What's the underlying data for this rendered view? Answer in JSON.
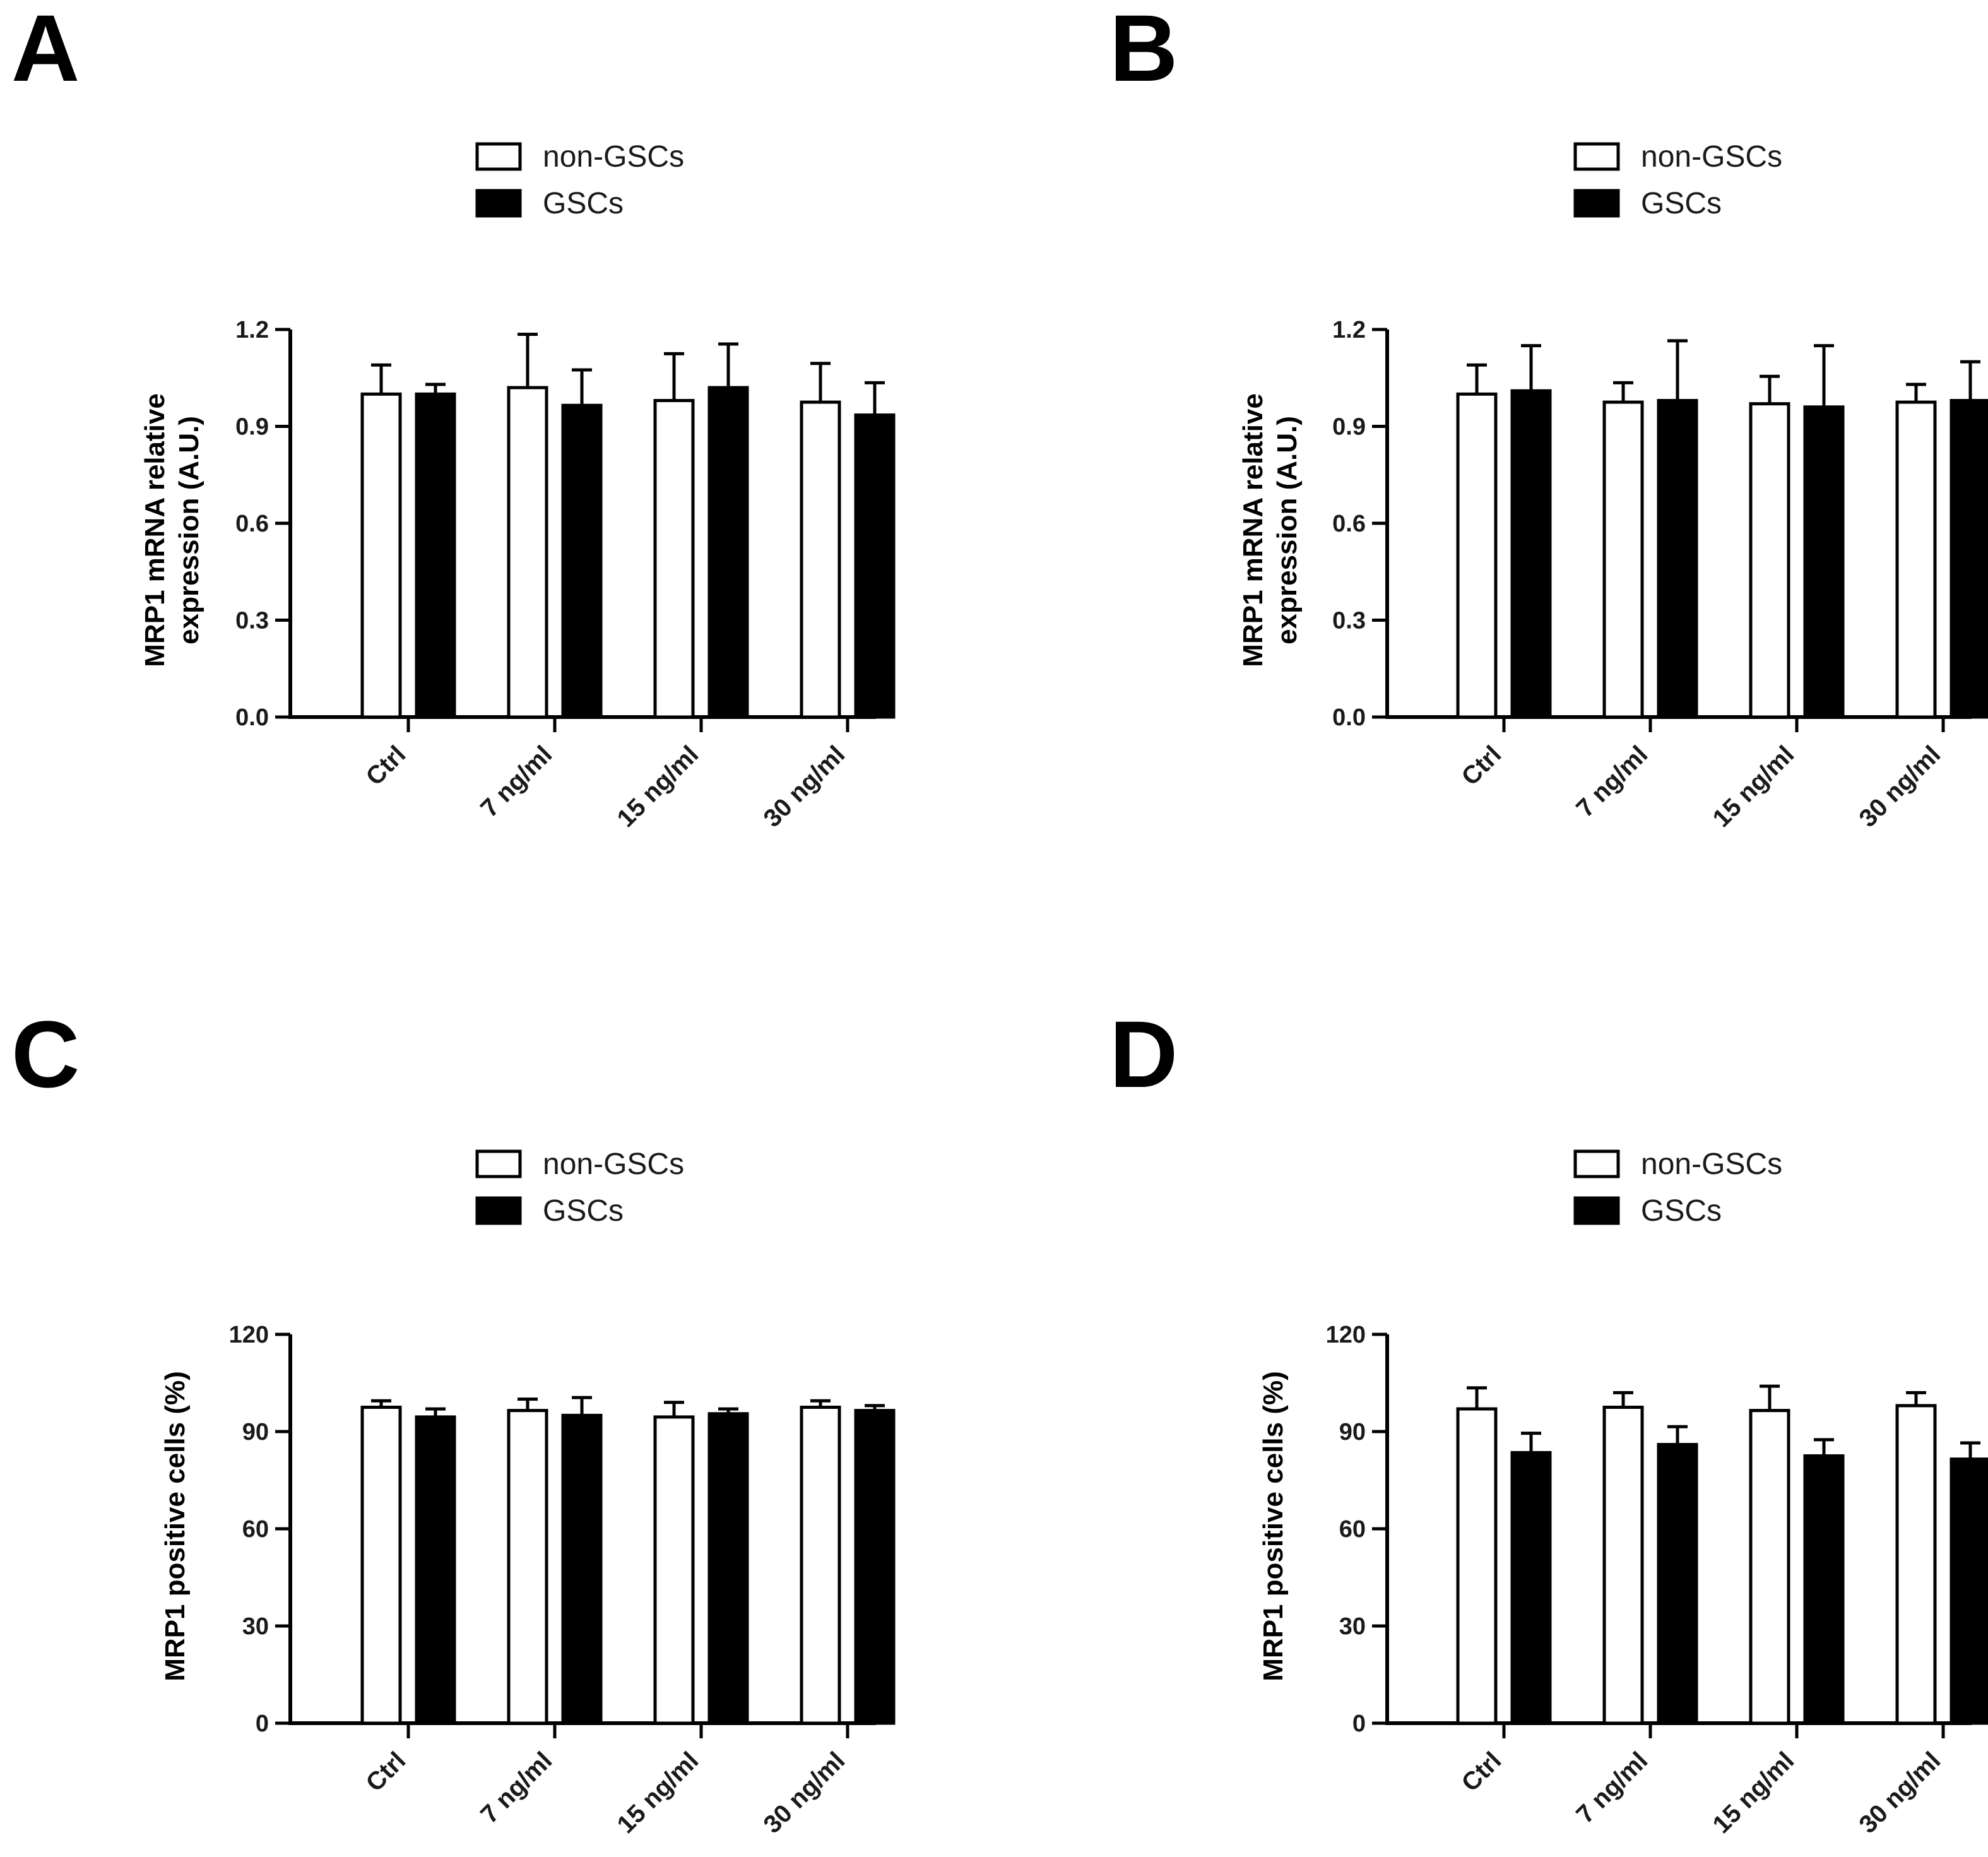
{
  "chart_data": [
    {
      "panel": "A",
      "type": "bar",
      "categories": [
        "Ctrl",
        "7 ng/ml",
        "15 ng/ml",
        "30 ng/ml"
      ],
      "series": [
        {
          "name": "non-GSCs",
          "color": "#ffffff",
          "values": [
            1.0,
            1.02,
            0.98,
            0.975
          ],
          "errors": [
            0.09,
            0.165,
            0.145,
            0.12
          ]
        },
        {
          "name": "GSCs",
          "color": "#000000",
          "values": [
            1.0,
            0.965,
            1.02,
            0.935
          ],
          "errors": [
            0.03,
            0.11,
            0.135,
            0.1
          ]
        }
      ],
      "ylabel_lines": [
        "MRP1 mRNA relative",
        "expression (A.U.)"
      ],
      "yticks": [
        "0.0",
        "0.3",
        "0.6",
        "0.9",
        "1.2"
      ],
      "ylim": [
        0,
        1.2
      ]
    },
    {
      "panel": "B",
      "type": "bar",
      "categories": [
        "Ctrl",
        "7 ng/ml",
        "15 ng/ml",
        "30 ng/ml"
      ],
      "series": [
        {
          "name": "non-GSCs",
          "color": "#ffffff",
          "values": [
            1.0,
            0.975,
            0.97,
            0.975
          ],
          "errors": [
            0.09,
            0.06,
            0.085,
            0.055
          ]
        },
        {
          "name": "GSCs",
          "color": "#000000",
          "values": [
            1.01,
            0.98,
            0.96,
            0.98
          ],
          "errors": [
            0.14,
            0.185,
            0.19,
            0.12
          ]
        }
      ],
      "ylabel_lines": [
        "MRP1 mRNA relative",
        "expression (A.U.)"
      ],
      "yticks": [
        "0.0",
        "0.3",
        "0.6",
        "0.9",
        "1.2"
      ],
      "ylim": [
        0,
        1.2
      ]
    },
    {
      "panel": "C",
      "type": "bar",
      "categories": [
        "Ctrl",
        "7 ng/ml",
        "15 ng/ml",
        "30 ng/ml"
      ],
      "series": [
        {
          "name": "non-GSCs",
          "color": "#ffffff",
          "values": [
            97.5,
            96.5,
            94.5,
            97.5
          ],
          "errors": [
            2.0,
            3.5,
            4.5,
            2.0
          ]
        },
        {
          "name": "GSCs",
          "color": "#000000",
          "values": [
            94.5,
            95.0,
            95.5,
            96.5
          ],
          "errors": [
            2.5,
            5.5,
            1.5,
            1.5
          ]
        }
      ],
      "ylabel_lines": [
        "MRP1 positive cells (%)"
      ],
      "yticks": [
        "0",
        "30",
        "60",
        "90",
        "120"
      ],
      "ylim": [
        0,
        120
      ]
    },
    {
      "panel": "D",
      "type": "bar",
      "categories": [
        "Ctrl",
        "7 ng/ml",
        "15 ng/ml",
        "30 ng/ml"
      ],
      "series": [
        {
          "name": "non-GSCs",
          "color": "#ffffff",
          "values": [
            97.0,
            97.5,
            96.5,
            98.0
          ],
          "errors": [
            6.5,
            4.5,
            7.5,
            4.0
          ]
        },
        {
          "name": "GSCs",
          "color": "#000000",
          "values": [
            83.5,
            86.0,
            82.5,
            81.5
          ],
          "errors": [
            6.0,
            5.5,
            5.0,
            5.0
          ]
        }
      ],
      "ylabel_lines": [
        "MRP1 positive cells (%)"
      ],
      "yticks": [
        "0",
        "30",
        "60",
        "90",
        "120"
      ],
      "ylim": [
        0,
        120
      ]
    }
  ]
}
